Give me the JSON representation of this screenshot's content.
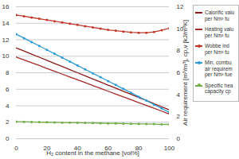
{
  "chart_data": {
    "type": "line",
    "xlabel": "H₂ content in the methane [vol%]",
    "y2label": "Air requirement [m³/m³], cp,v [kJ/m³K]",
    "x": [
      0,
      5,
      10,
      15,
      20,
      25,
      30,
      35,
      40,
      45,
      50,
      55,
      60,
      65,
      70,
      75,
      80,
      85,
      90,
      95,
      100
    ],
    "xlim": [
      0,
      100
    ],
    "xticks": [
      0,
      20,
      40,
      60,
      80,
      100
    ],
    "ylim": [
      0,
      16
    ],
    "yticks": [
      0,
      2,
      4,
      6,
      8,
      10,
      12,
      14,
      16
    ],
    "y2lim": [
      0,
      12
    ],
    "y2ticks": [
      0,
      2,
      4,
      6,
      8,
      10,
      12
    ],
    "grid": true,
    "legend": "right",
    "series": [
      {
        "name": "Calorific valu per Nm³ fu",
        "color": "#8b1a1a",
        "line_style": "solid",
        "values": [
          11.0,
          10.63,
          10.25,
          9.88,
          9.5,
          9.13,
          8.75,
          8.38,
          8.0,
          7.63,
          7.25,
          6.88,
          6.5,
          6.13,
          5.75,
          5.38,
          5.0,
          4.63,
          4.25,
          3.88,
          3.5
        ]
      },
      {
        "name": "Heating valu per Nm³ fu",
        "color": "#a52a2a",
        "line_style": "solid",
        "values": [
          9.9,
          9.56,
          9.21,
          8.87,
          8.52,
          8.18,
          7.83,
          7.49,
          7.14,
          6.8,
          6.45,
          6.11,
          5.76,
          5.42,
          5.07,
          4.73,
          4.38,
          4.04,
          3.69,
          3.35,
          3.0
        ]
      },
      {
        "name": "Wobbe ind per Nm³ fu",
        "color": "#c0392b",
        "line_style": "solid",
        "marker": "circle",
        "values": [
          15.0,
          14.85,
          14.7,
          14.55,
          14.4,
          14.25,
          14.1,
          13.95,
          13.8,
          13.65,
          13.5,
          13.35,
          13.2,
          13.1,
          13.0,
          12.9,
          12.85,
          12.85,
          12.95,
          13.15,
          13.4
        ]
      },
      {
        "name": "Min. combu air requirem per Nm³ fue",
        "color": "#2e9bd6",
        "line_style": "solid",
        "marker": "circle",
        "axis": "y2",
        "values": [
          9.5,
          9.15,
          8.79,
          8.44,
          8.08,
          7.73,
          7.37,
          7.02,
          6.66,
          6.31,
          5.95,
          5.6,
          5.24,
          4.89,
          4.53,
          4.18,
          3.82,
          3.47,
          3.11,
          2.76,
          2.4
        ]
      },
      {
        "name": "Specific hea capacity cp",
        "color": "#70ad47",
        "line_style": "solid",
        "marker": "circle",
        "axis": "y2",
        "values": [
          1.55,
          1.54,
          1.52,
          1.51,
          1.5,
          1.49,
          1.47,
          1.46,
          1.45,
          1.44,
          1.43,
          1.41,
          1.4,
          1.39,
          1.38,
          1.36,
          1.35,
          1.34,
          1.33,
          1.31,
          1.3
        ]
      }
    ]
  }
}
